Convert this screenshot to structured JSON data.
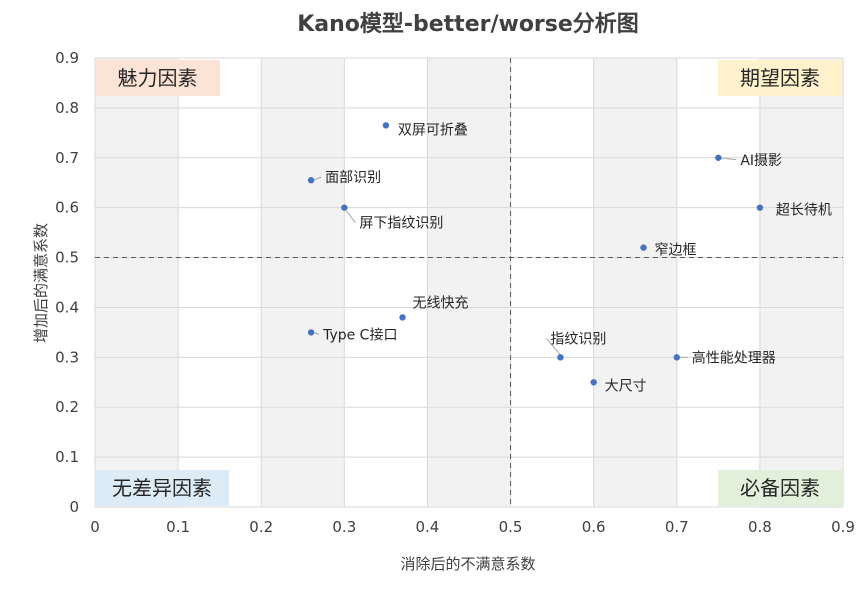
{
  "chart_data": {
    "type": "scatter",
    "title": "Kano模型-better/worse分析图",
    "xlabel": "消除后的不满意系数",
    "ylabel": "增加后的满意系数",
    "xlim": [
      0,
      0.9
    ],
    "ylim": [
      0,
      0.9
    ],
    "x_ticks": [
      "0",
      "0.1",
      "0.2",
      "0.3",
      "0.4",
      "0.5",
      "0.6",
      "0.7",
      "0.8",
      "0.9"
    ],
    "y_ticks": [
      "0",
      "0.1",
      "0.2",
      "0.3",
      "0.4",
      "0.5",
      "0.6",
      "0.7",
      "0.8",
      "0.9"
    ],
    "grid": true,
    "reference_lines": {
      "x": 0.5,
      "y": 0.5
    },
    "points": [
      {
        "label": "双屏可折叠",
        "x": 0.35,
        "y": 0.765
      },
      {
        "label": "AI摄影",
        "x": 0.75,
        "y": 0.7
      },
      {
        "label": "面部识别",
        "x": 0.26,
        "y": 0.655
      },
      {
        "label": "屏下指纹识别",
        "x": 0.3,
        "y": 0.6
      },
      {
        "label": "超长待机",
        "x": 0.8,
        "y": 0.6
      },
      {
        "label": "窄边框",
        "x": 0.66,
        "y": 0.52
      },
      {
        "label": "无线快充",
        "x": 0.37,
        "y": 0.38
      },
      {
        "label": "Type C接口",
        "x": 0.26,
        "y": 0.35
      },
      {
        "label": "指纹识别",
        "x": 0.56,
        "y": 0.3
      },
      {
        "label": "高性能处理器",
        "x": 0.7,
        "y": 0.3
      },
      {
        "label": "大尺寸",
        "x": 0.6,
        "y": 0.25
      }
    ],
    "quadrants": [
      {
        "label": "魅力因素",
        "position": "top-left",
        "color": "#fbe3d6"
      },
      {
        "label": "期望因素",
        "position": "top-right",
        "color": "#fff2cc"
      },
      {
        "label": "无差异因素",
        "position": "bottom-left",
        "color": "#ddebf7"
      },
      {
        "label": "必备因素",
        "position": "bottom-right",
        "color": "#e2efda"
      }
    ],
    "colors": {
      "point": "#4472c4",
      "grid": "#d9d9d9",
      "reference": "#595959",
      "shade": "#f2f2f2"
    }
  }
}
